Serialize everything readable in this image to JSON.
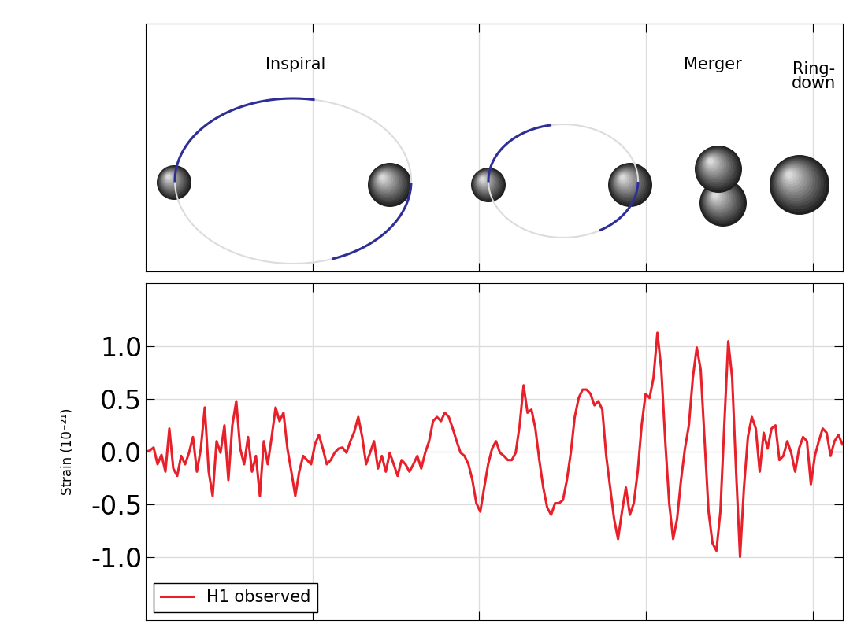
{
  "chart_data": {
    "type": "line",
    "y_label": "Strain (10⁻²¹)",
    "x": [
      0.25,
      0.25118,
      0.25236,
      0.25354,
      0.25472,
      0.2559,
      0.25708,
      0.25826,
      0.25944,
      0.26062,
      0.2618,
      0.26298,
      0.26416,
      0.26534,
      0.26652,
      0.2677,
      0.26888,
      0.27006,
      0.27124,
      0.27242,
      0.2736,
      0.27478,
      0.27596,
      0.27714,
      0.27832,
      0.2795,
      0.28068,
      0.28186,
      0.28304,
      0.28422,
      0.2854,
      0.28658,
      0.28776,
      0.28894,
      0.29012,
      0.2913,
      0.29248,
      0.29366,
      0.29484,
      0.29602,
      0.2972,
      0.29838,
      0.29956,
      0.30074,
      0.30192,
      0.3031,
      0.30428,
      0.30546,
      0.30664,
      0.30782,
      0.309,
      0.31018,
      0.31136,
      0.31254,
      0.31372,
      0.3149,
      0.31608,
      0.31726,
      0.31844,
      0.31962,
      0.3208,
      0.32198,
      0.32316,
      0.32434,
      0.32552,
      0.3267,
      0.32788,
      0.32906,
      0.33024,
      0.33142,
      0.3326,
      0.33378,
      0.33496,
      0.33614,
      0.33732,
      0.3385,
      0.33968,
      0.34086,
      0.34204,
      0.34322,
      0.3444,
      0.34558,
      0.34676,
      0.34794,
      0.34912,
      0.3503,
      0.35148,
      0.35266,
      0.35384,
      0.35502,
      0.3562,
      0.35738,
      0.35856,
      0.35974,
      0.36092,
      0.3621,
      0.36328,
      0.36446,
      0.36564,
      0.36682,
      0.368,
      0.36918,
      0.37036,
      0.37154,
      0.37272,
      0.3739,
      0.37508,
      0.37626,
      0.37744,
      0.37862,
      0.3798,
      0.38098,
      0.38216,
      0.38334,
      0.38452,
      0.3857,
      0.38688,
      0.38806,
      0.38924,
      0.39042,
      0.3916,
      0.39278,
      0.39396,
      0.39514,
      0.39632,
      0.3975,
      0.39868,
      0.39986,
      0.40104,
      0.40222,
      0.4034,
      0.40458,
      0.40576,
      0.40694,
      0.40812,
      0.4093,
      0.41048,
      0.41166,
      0.41284,
      0.41402,
      0.4152,
      0.41638,
      0.41756,
      0.41874,
      0.41992,
      0.4211,
      0.42228,
      0.42346,
      0.42464,
      0.42582,
      0.427,
      0.42818,
      0.42936,
      0.43054,
      0.43172,
      0.4329,
      0.43408,
      0.43526,
      0.43644,
      0.43762,
      0.4388,
      0.43998,
      0.44116,
      0.44234,
      0.44352,
      0.4447,
      0.44588,
      0.44706,
      0.44824,
      0.44942,
      0.4506,
      0.45178,
      0.45296,
      0.45414,
      0.45532,
      0.4565,
      0.45768,
      0.45886
    ],
    "series": [
      {
        "name": "H1 observed",
        "color": "#e8202a",
        "values": [
          0.0,
          0.01,
          0.04,
          -0.12,
          -0.03,
          -0.19,
          0.22,
          -0.16,
          -0.23,
          -0.04,
          -0.12,
          -0.01,
          0.14,
          -0.19,
          0.03,
          0.42,
          -0.19,
          -0.42,
          0.1,
          -0.01,
          0.25,
          -0.27,
          0.25,
          0.48,
          0.03,
          -0.12,
          0.14,
          -0.19,
          -0.04,
          -0.42,
          0.1,
          -0.12,
          0.14,
          0.42,
          0.29,
          0.37,
          0.03,
          -0.19,
          -0.42,
          -0.19,
          -0.04,
          -0.08,
          -0.12,
          0.07,
          0.16,
          0.03,
          -0.12,
          -0.08,
          -0.01,
          0.03,
          0.04,
          -0.01,
          0.1,
          0.19,
          0.33,
          0.14,
          -0.12,
          -0.01,
          0.1,
          -0.16,
          -0.04,
          -0.19,
          -0.01,
          -0.12,
          -0.23,
          -0.08,
          -0.12,
          -0.19,
          -0.12,
          -0.04,
          -0.16,
          -0.01,
          0.1,
          0.29,
          0.33,
          0.29,
          0.37,
          0.33,
          0.22,
          0.1,
          -0.01,
          -0.04,
          -0.12,
          -0.27,
          -0.49,
          -0.57,
          -0.34,
          -0.12,
          0.03,
          0.1,
          -0.01,
          -0.04,
          -0.08,
          -0.08,
          -0.01,
          0.25,
          0.63,
          0.37,
          0.4,
          0.22,
          -0.08,
          -0.34,
          -0.53,
          -0.6,
          -0.49,
          -0.49,
          -0.46,
          -0.27,
          -0.01,
          0.33,
          0.51,
          0.59,
          0.59,
          0.55,
          0.44,
          0.48,
          0.4,
          -0.04,
          -0.34,
          -0.64,
          -0.83,
          -0.57,
          -0.34,
          -0.6,
          -0.49,
          -0.19,
          0.25,
          0.55,
          0.51,
          0.7,
          1.13,
          0.78,
          0.1,
          -0.49,
          -0.83,
          -0.64,
          -0.27,
          0.03,
          0.25,
          0.7,
          0.99,
          0.78,
          0.1,
          -0.57,
          -0.87,
          -0.94,
          -0.57,
          0.25,
          1.05,
          0.7,
          -0.19,
          -1.0,
          -0.34,
          0.14,
          0.33,
          0.22,
          -0.19,
          0.18,
          0.03,
          0.22,
          0.25,
          -0.08,
          -0.04,
          0.1,
          -0.01,
          -0.19,
          0.03,
          0.14,
          0.1,
          -0.31,
          -0.04,
          0.1,
          0.22,
          0.18,
          -0.04,
          0.1,
          0.16,
          0.07
        ]
      }
    ],
    "xlim": [
      0.25,
      0.459
    ],
    "xticks": [
      0.3,
      0.35,
      0.4,
      0.45
    ],
    "ylim": [
      -1.6,
      1.6
    ],
    "yticks": [
      1.0,
      0.5,
      0.0,
      -0.5,
      -1.0
    ],
    "grid": true,
    "legend": "lower left",
    "tick_labels": "y"
  },
  "diagram": {
    "stages": [
      "Inspiral",
      "Merger",
      "Ring-\ndown"
    ]
  }
}
